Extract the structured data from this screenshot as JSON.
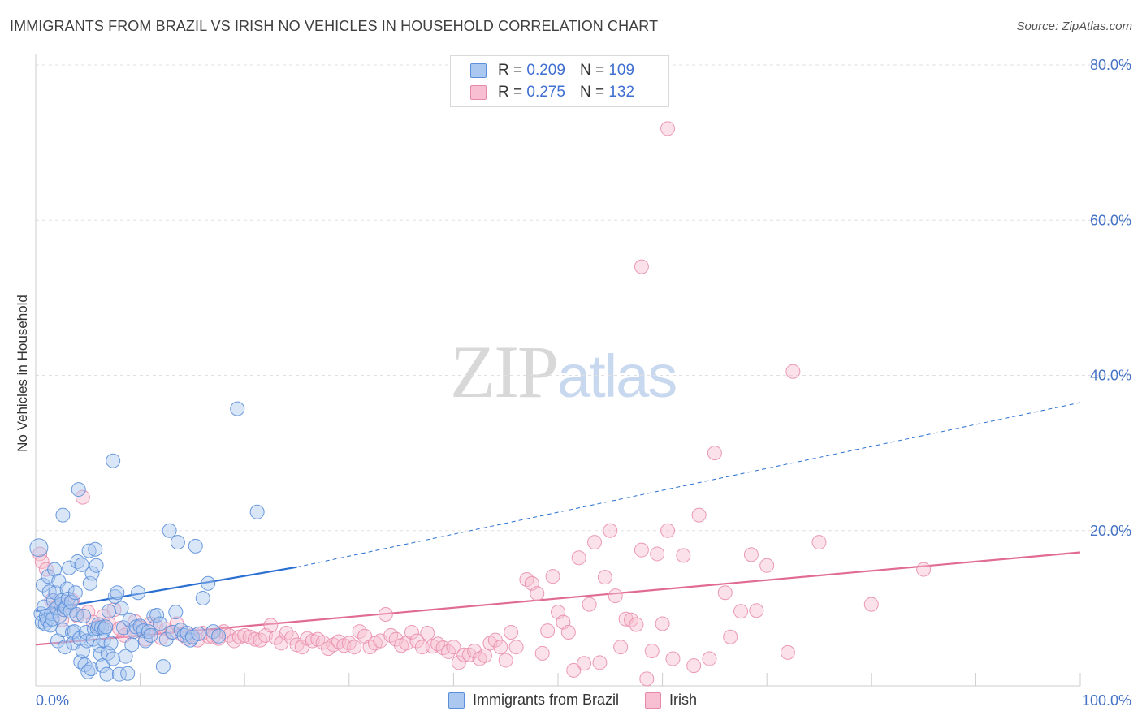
{
  "header": {
    "title": "IMMIGRANTS FROM BRAZIL VS IRISH NO VEHICLES IN HOUSEHOLD CORRELATION CHART",
    "source": "Source: ZipAtlas.com"
  },
  "watermark": {
    "zip": "ZIP",
    "atlas": "atlas"
  },
  "legend_top": [
    {
      "r_label": "R =",
      "r_value": "0.209",
      "n_label": "N =",
      "n_value": "109"
    },
    {
      "r_label": "R =",
      "r_value": "0.275",
      "n_label": "N =",
      "n_value": "132"
    }
  ],
  "legend_bottom": [
    "Immigrants from Brazil",
    "Irish"
  ],
  "colors": {
    "brazil_fill": "#aac8f0",
    "brazil_stroke": "#5b8fd9",
    "brazil_line": "#2a6fd1",
    "irish_fill": "#f7bfd1",
    "irish_stroke": "#e78aa9",
    "irish_line": "#e06b93",
    "tick_label": "#4472c4",
    "grid": "#e0e0e0"
  },
  "chart_data": {
    "type": "scatter",
    "title": "IMMIGRANTS FROM BRAZIL VS IRISH NO VEHICLES IN HOUSEHOLD CORRELATION CHART",
    "xlabel": "",
    "ylabel": "No Vehicles in Household",
    "xlim": [
      0,
      100
    ],
    "ylim": [
      0,
      80
    ],
    "x_tick_labels": [
      "0.0%",
      "100.0%"
    ],
    "y_ticks": [
      20,
      40,
      60,
      80
    ],
    "y_tick_labels": [
      "20.0%",
      "40.0%",
      "60.0%",
      "80.0%"
    ],
    "grid": "horizontal dashed",
    "legend_position": "top-center",
    "series": [
      {
        "name": "Immigrants from Brazil",
        "r": 0.209,
        "n": 109,
        "trend": {
          "x": [
            0,
            25
          ],
          "y": [
            9.6,
            15.3
          ],
          "extended_to": [
            100,
            36.5
          ]
        },
        "points": [
          [
            0.3,
            17.8
          ],
          [
            0.5,
            9.3
          ],
          [
            0.6,
            8.2
          ],
          [
            0.7,
            13.0
          ],
          [
            0.8,
            10.2
          ],
          [
            0.9,
            8.0
          ],
          [
            1.0,
            9.0
          ],
          [
            1.1,
            8.5
          ],
          [
            1.2,
            14.1
          ],
          [
            1.3,
            12.1
          ],
          [
            1.4,
            7.8
          ],
          [
            1.5,
            9.3
          ],
          [
            1.6,
            8.6
          ],
          [
            1.7,
            11.0
          ],
          [
            1.8,
            15.0
          ],
          [
            1.9,
            12.0
          ],
          [
            2.0,
            10.0
          ],
          [
            2.1,
            5.8
          ],
          [
            2.2,
            13.5
          ],
          [
            2.3,
            9.0
          ],
          [
            2.4,
            10.5
          ],
          [
            2.5,
            11.0
          ],
          [
            2.6,
            7.2
          ],
          [
            2.7,
            9.8
          ],
          [
            2.8,
            5.0
          ],
          [
            2.9,
            10.1
          ],
          [
            3.0,
            12.5
          ],
          [
            3.1,
            11.2
          ],
          [
            3.2,
            15.2
          ],
          [
            3.3,
            9.6
          ],
          [
            3.4,
            10.8
          ],
          [
            3.5,
            6.9
          ],
          [
            3.6,
            5.5
          ],
          [
            3.7,
            7.0
          ],
          [
            3.8,
            12.0
          ],
          [
            3.9,
            9.2
          ],
          [
            4.0,
            16.0
          ],
          [
            4.1,
            25.3
          ],
          [
            4.2,
            6.1
          ],
          [
            4.3,
            3.1
          ],
          [
            4.4,
            15.6
          ],
          [
            4.5,
            4.5
          ],
          [
            4.6,
            9.0
          ],
          [
            4.7,
            2.7
          ],
          [
            4.8,
            6.9
          ],
          [
            4.9,
            5.8
          ],
          [
            5.0,
            1.8
          ],
          [
            5.1,
            17.4
          ],
          [
            5.2,
            13.2
          ],
          [
            5.3,
            2.2
          ],
          [
            5.4,
            14.5
          ],
          [
            5.5,
            6.0
          ],
          [
            5.6,
            7.3
          ],
          [
            5.7,
            17.6
          ],
          [
            5.8,
            15.5
          ],
          [
            5.9,
            7.4
          ],
          [
            6.0,
            7.9
          ],
          [
            6.1,
            5.2
          ],
          [
            6.2,
            4.1
          ],
          [
            6.3,
            7.5
          ],
          [
            6.4,
            2.6
          ],
          [
            6.5,
            5.9
          ],
          [
            6.6,
            7.3
          ],
          [
            6.7,
            7.6
          ],
          [
            6.8,
            1.5
          ],
          [
            6.9,
            4.2
          ],
          [
            7.0,
            9.6
          ],
          [
            7.2,
            5.5
          ],
          [
            7.4,
            3.5
          ],
          [
            7.6,
            11.5
          ],
          [
            7.8,
            12.0
          ],
          [
            8.0,
            1.5
          ],
          [
            8.2,
            10.0
          ],
          [
            8.4,
            7.5
          ],
          [
            8.6,
            3.8
          ],
          [
            8.8,
            1.6
          ],
          [
            9.0,
            8.5
          ],
          [
            9.2,
            5.3
          ],
          [
            9.4,
            7.0
          ],
          [
            9.6,
            7.6
          ],
          [
            9.8,
            12.0
          ],
          [
            10.0,
            7.7
          ],
          [
            10.3,
            7.1
          ],
          [
            10.5,
            5.8
          ],
          [
            10.8,
            7.0
          ],
          [
            11.0,
            6.5
          ],
          [
            11.3,
            9.0
          ],
          [
            11.6,
            9.1
          ],
          [
            11.9,
            8.0
          ],
          [
            12.2,
            2.5
          ],
          [
            12.5,
            6.0
          ],
          [
            12.8,
            20.0
          ],
          [
            13.1,
            6.9
          ],
          [
            13.4,
            9.5
          ],
          [
            13.6,
            18.5
          ],
          [
            13.9,
            7.2
          ],
          [
            14.2,
            6.5
          ],
          [
            14.5,
            6.8
          ],
          [
            14.8,
            5.9
          ],
          [
            15.0,
            6.3
          ],
          [
            15.3,
            18.0
          ],
          [
            15.6,
            6.7
          ],
          [
            16.0,
            11.3
          ],
          [
            16.5,
            13.2
          ],
          [
            17.0,
            7.0
          ],
          [
            17.5,
            6.4
          ],
          [
            2.6,
            22.0
          ],
          [
            7.4,
            29.0
          ],
          [
            21.2,
            22.4
          ],
          [
            19.3,
            35.7
          ]
        ]
      },
      {
        "name": "Irish",
        "r": 0.275,
        "n": 132,
        "trend": {
          "x": [
            0,
            100
          ],
          "y": [
            5.3,
            17.2
          ]
        },
        "points": [
          [
            0.4,
            17.0
          ],
          [
            0.6,
            16.0
          ],
          [
            1.0,
            15.0
          ],
          [
            1.5,
            11.0
          ],
          [
            2.0,
            10.2
          ],
          [
            2.5,
            8.5
          ],
          [
            3.0,
            10.5
          ],
          [
            3.5,
            11.0
          ],
          [
            4.0,
            9.0
          ],
          [
            4.5,
            24.3
          ],
          [
            5.0,
            9.5
          ],
          [
            5.5,
            8.2
          ],
          [
            6.0,
            7.6
          ],
          [
            6.5,
            9.0
          ],
          [
            7.0,
            8.0
          ],
          [
            7.5,
            9.8
          ],
          [
            8.0,
            7.4
          ],
          [
            8.5,
            6.5
          ],
          [
            9.0,
            7.0
          ],
          [
            9.5,
            8.3
          ],
          [
            10.0,
            7.5
          ],
          [
            10.5,
            6.0
          ],
          [
            11.0,
            8.0
          ],
          [
            11.5,
            7.7
          ],
          [
            12.0,
            6.2
          ],
          [
            12.5,
            7.3
          ],
          [
            13.0,
            6.9
          ],
          [
            13.5,
            8.0
          ],
          [
            14.0,
            6.6
          ],
          [
            14.5,
            6.1
          ],
          [
            15.0,
            6.5
          ],
          [
            15.5,
            5.9
          ],
          [
            16.0,
            6.8
          ],
          [
            16.5,
            6.4
          ],
          [
            17.0,
            6.3
          ],
          [
            17.5,
            6.1
          ],
          [
            18.0,
            7.0
          ],
          [
            18.5,
            6.5
          ],
          [
            19.0,
            5.8
          ],
          [
            19.5,
            6.3
          ],
          [
            20.0,
            6.5
          ],
          [
            20.5,
            6.3
          ],
          [
            21.0,
            6.0
          ],
          [
            21.5,
            5.9
          ],
          [
            22.0,
            6.5
          ],
          [
            22.5,
            7.8
          ],
          [
            23.0,
            6.2
          ],
          [
            23.5,
            5.5
          ],
          [
            24.0,
            6.8
          ],
          [
            24.5,
            6.2
          ],
          [
            25.0,
            5.3
          ],
          [
            25.5,
            5.0
          ],
          [
            26.0,
            6.1
          ],
          [
            26.5,
            5.8
          ],
          [
            27.0,
            6.0
          ],
          [
            27.5,
            5.6
          ],
          [
            28.0,
            4.8
          ],
          [
            28.5,
            5.3
          ],
          [
            29.0,
            5.7
          ],
          [
            29.5,
            5.2
          ],
          [
            30.0,
            5.5
          ],
          [
            30.5,
            5.0
          ],
          [
            31.0,
            7.0
          ],
          [
            31.5,
            6.4
          ],
          [
            32.0,
            5.0
          ],
          [
            32.5,
            5.5
          ],
          [
            33.0,
            5.8
          ],
          [
            33.5,
            9.2
          ],
          [
            34.0,
            6.5
          ],
          [
            34.5,
            6.0
          ],
          [
            35.0,
            5.2
          ],
          [
            35.5,
            5.5
          ],
          [
            36.0,
            6.9
          ],
          [
            36.5,
            5.8
          ],
          [
            37.0,
            5.0
          ],
          [
            37.5,
            6.8
          ],
          [
            38.0,
            5.1
          ],
          [
            38.5,
            5.4
          ],
          [
            39.0,
            4.9
          ],
          [
            39.5,
            4.4
          ],
          [
            40.0,
            5.0
          ],
          [
            40.5,
            3.0
          ],
          [
            41.0,
            4.0
          ],
          [
            41.5,
            4.0
          ],
          [
            42.0,
            4.5
          ],
          [
            42.5,
            3.5
          ],
          [
            43.0,
            3.9
          ],
          [
            43.5,
            5.5
          ],
          [
            44.0,
            5.9
          ],
          [
            44.5,
            5.0
          ],
          [
            45.0,
            3.3
          ],
          [
            45.5,
            6.9
          ],
          [
            46.0,
            5.0
          ],
          [
            47.0,
            13.7
          ],
          [
            47.5,
            13.2
          ],
          [
            48.0,
            11.9
          ],
          [
            48.5,
            4.2
          ],
          [
            49.0,
            7.1
          ],
          [
            49.5,
            14.1
          ],
          [
            50.0,
            9.5
          ],
          [
            50.5,
            8.2
          ],
          [
            51.0,
            6.9
          ],
          [
            51.5,
            2.0
          ],
          [
            52.0,
            16.5
          ],
          [
            52.5,
            2.9
          ],
          [
            53.0,
            10.5
          ],
          [
            53.5,
            18.5
          ],
          [
            54.0,
            3.0
          ],
          [
            54.5,
            14.0
          ],
          [
            55.0,
            20.0
          ],
          [
            55.5,
            11.6
          ],
          [
            56.0,
            5.0
          ],
          [
            56.5,
            8.6
          ],
          [
            57.0,
            8.5
          ],
          [
            57.5,
            7.9
          ],
          [
            58.0,
            17.5
          ],
          [
            58.5,
            0.9
          ],
          [
            59.0,
            4.5
          ],
          [
            59.5,
            17.0
          ],
          [
            60.0,
            8.0
          ],
          [
            60.5,
            20.0
          ],
          [
            61.0,
            3.5
          ],
          [
            62.0,
            16.8
          ],
          [
            63.0,
            2.6
          ],
          [
            63.5,
            22.0
          ],
          [
            64.5,
            3.5
          ],
          [
            65.0,
            30.0
          ],
          [
            66.0,
            12.0
          ],
          [
            66.5,
            6.3
          ],
          [
            67.5,
            9.6
          ],
          [
            68.5,
            16.9
          ],
          [
            69.0,
            9.7
          ],
          [
            70.0,
            15.5
          ],
          [
            72.0,
            4.3
          ],
          [
            75.0,
            18.5
          ],
          [
            80.0,
            10.5
          ],
          [
            85.0,
            15.0
          ],
          [
            58.0,
            54.0
          ],
          [
            60.5,
            71.8
          ],
          [
            72.5,
            40.5
          ]
        ]
      }
    ]
  }
}
